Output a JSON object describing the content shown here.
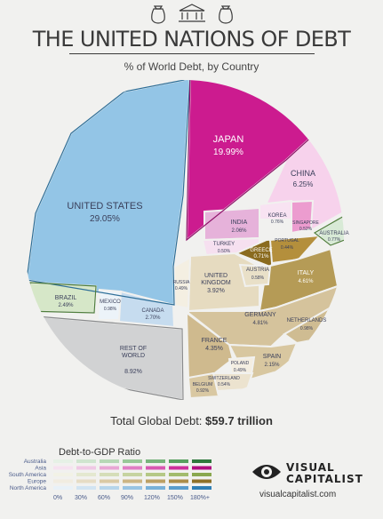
{
  "header": {
    "title": "THE UNITED NATIONS OF DEBT",
    "subtitle": "% of World Debt, by Country"
  },
  "total": {
    "label": "Total Global Debt:",
    "value": "$59.7 trillion"
  },
  "chart_data": {
    "type": "pie",
    "title": "THE UNITED NATIONS OF DEBT",
    "subtitle": "% of World Debt, by Country",
    "unit": "%",
    "slices": [
      {
        "name": "UNITED STATES",
        "value": 29.05,
        "value_label": "29.05%",
        "region": "North America"
      },
      {
        "name": "JAPAN",
        "value": 19.99,
        "value_label": "19.99%",
        "region": "Asia"
      },
      {
        "name": "CHINA",
        "value": 6.25,
        "value_label": "6.25%",
        "region": "Asia"
      },
      {
        "name": "INDIA",
        "value": 2.06,
        "value_label": "2.06%",
        "region": "Asia"
      },
      {
        "name": "KOREA",
        "value": 0.76,
        "value_label": "0.76%",
        "region": "Asia"
      },
      {
        "name": "SINGAPORE",
        "value": 0.52,
        "value_label": "0.52%",
        "region": "Asia"
      },
      {
        "name": "TURKEY",
        "value": 0.5,
        "value_label": "0.50%",
        "region": "Asia"
      },
      {
        "name": "AUSTRALIA",
        "value": 0.77,
        "value_label": "0.77%",
        "region": "Australia"
      },
      {
        "name": "GREECE",
        "value": 0.71,
        "value_label": "0.71%",
        "region": "Europe"
      },
      {
        "name": "PORTUGAL",
        "value": 0.44,
        "value_label": "0.44%",
        "region": "Europe"
      },
      {
        "name": "ITALY",
        "value": 4.61,
        "value_label": "4.61%",
        "region": "Europe"
      },
      {
        "name": "UNITED KINGDOM",
        "value": 3.92,
        "value_label": "3.92%",
        "region": "Europe"
      },
      {
        "name": "AUSTRIA",
        "value": 0.58,
        "value_label": "0.58%",
        "region": "Europe"
      },
      {
        "name": "RUSSIA",
        "value": 0.49,
        "value_label": "0.49%",
        "region": "Europe"
      },
      {
        "name": "GERMANY",
        "value": 4.81,
        "value_label": "4.81%",
        "region": "Europe"
      },
      {
        "name": "NETHERLANDS",
        "value": 0.98,
        "value_label": "0.98%",
        "region": "Europe"
      },
      {
        "name": "FRANCE",
        "value": 4.35,
        "value_label": "4.35%",
        "region": "Europe"
      },
      {
        "name": "SPAIN",
        "value": 2.15,
        "value_label": "2.15%",
        "region": "Europe"
      },
      {
        "name": "POLAND",
        "value": 0.49,
        "value_label": "0.49%",
        "region": "Europe"
      },
      {
        "name": "SWITZERLAND",
        "value": 0.54,
        "value_label": "0.54%",
        "region": "Europe"
      },
      {
        "name": "BELGIUM",
        "value": 0.92,
        "value_label": "0.92%",
        "region": "Europe"
      },
      {
        "name": "BRAZIL",
        "value": 2.49,
        "value_label": "2.49%",
        "region": "South America"
      },
      {
        "name": "MEXICO",
        "value": 0.98,
        "value_label": "0.98%",
        "region": "North America"
      },
      {
        "name": "CANADA",
        "value": 2.7,
        "value_label": "2.70%",
        "region": "North America"
      },
      {
        "name": "REST OF WORLD",
        "value": 8.92,
        "value_label": "8.92%",
        "region": "Other"
      }
    ],
    "legend": {
      "title": "Debt-to-GDP Ratio",
      "rows": [
        "Australia",
        "Asia",
        "South America",
        "Europe",
        "North America"
      ],
      "ticks": [
        "0%",
        "30%",
        "60%",
        "90%",
        "120%",
        "150%",
        "180%+"
      ],
      "colors": {
        "Australia": [
          "#e6f1e6",
          "#cfe5cf",
          "#b6d8b6",
          "#98c898",
          "#78b47c",
          "#57a05e",
          "#2f7a3d"
        ],
        "Asia": [
          "#f6e2f0",
          "#efc8e4",
          "#e8a6d5",
          "#e07dc4",
          "#d857b1",
          "#cc2f9b",
          "#b00f80"
        ],
        "South America": [
          "#f2f2e6",
          "#e4e8d0",
          "#d5ddb8",
          "#c6d3a0",
          "#b5c886",
          "#a2bb6c",
          "#8aa84f"
        ],
        "Europe": [
          "#f1ece0",
          "#e6dcc4",
          "#dac9a4",
          "#ccb584",
          "#bca064",
          "#ac8c48",
          "#8e7028"
        ],
        "North America": [
          "#e8f1f8",
          "#d1e4f2",
          "#b6d5eb",
          "#98c4e3",
          "#78b1d8",
          "#5a9ccb",
          "#2f7fb5"
        ]
      }
    },
    "colors": {
      "UNITED STATES": "#93c5e6",
      "JAPAN": "#cc1b8f",
      "CHINA": "#f7d2ec",
      "INDIA": "#e6b2da",
      "KOREA": "#f8e3f2",
      "SINGAPORE": "#ec9ccf",
      "TURKEY": "#f6e0f0",
      "AUSTRALIA": "#d8ead6",
      "GREECE": "#8a6b1f",
      "PORTUGAL": "#b48f3c",
      "ITALY": "#b59b56",
      "UNITED KINGDOM": "#e6dbc0",
      "AUSTRIA": "#e9e0c8",
      "RUSSIA": "#f4efe2",
      "GERMANY": "#d5c39c",
      "NETHERLANDS": "#cfbc92",
      "FRANCE": "#cfba8e",
      "SPAIN": "#d8c7a0",
      "POLAND": "#f4eee2",
      "SWITZERLAND": "#ece3cf",
      "BELGIUM": "#d9c8a2",
      "BRAZIL": "#d6e7c8",
      "MEXICO": "#ecf3f9",
      "CANADA": "#c6dcef",
      "REST OF WORLD": "#d1d2d3"
    }
  },
  "brand": {
    "name_line1": "VISUAL",
    "name_line2": "CAPITALIST",
    "url": "visualcapitalist.com"
  }
}
